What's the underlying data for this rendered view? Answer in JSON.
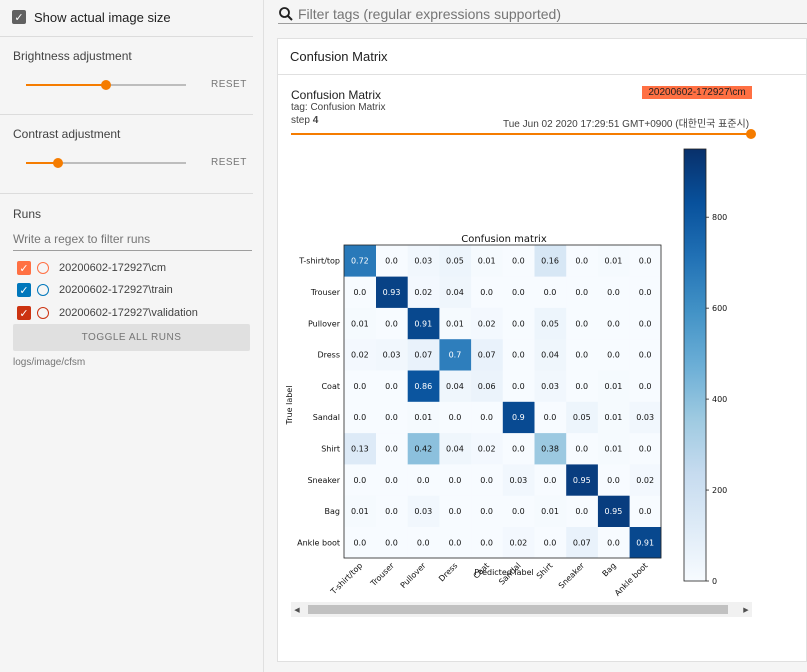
{
  "sidebar": {
    "show_actual_size": "Show actual image size",
    "brightness": {
      "label": "Brightness adjustment",
      "reset": "RESET",
      "value": 0.6
    },
    "contrast": {
      "label": "Contrast adjustment",
      "reset": "RESET",
      "value": 0.2
    },
    "runs": {
      "label": "Runs",
      "filter_placeholder": "Write a regex to filter runs",
      "items": [
        {
          "name": "20200602-172927\\cm",
          "color": "#ff7043"
        },
        {
          "name": "20200602-172927\\train",
          "color": "#0077bb"
        },
        {
          "name": "20200602-172927\\validation",
          "color": "#cc3311"
        }
      ],
      "toggle_all": "TOGGLE ALL RUNS",
      "logdir": "logs/image/cfsm"
    }
  },
  "filter": {
    "placeholder": "Filter tags (regular expressions supported)"
  },
  "card": {
    "title": "Confusion Matrix",
    "image_title": "Confusion Matrix",
    "tag_line": "tag: Confusion Matrix",
    "step_label": "step",
    "step_value": "4",
    "run_badge": "20200602-172927\\cm",
    "timestamp": "Tue Jun 02 2020 17:29:51 GMT+0900 (대한민국 표준시)"
  },
  "chart_data": {
    "type": "heatmap",
    "title": "Confusion matrix",
    "xlabel": "Predicted label",
    "ylabel": "True label",
    "categories": [
      "T-shirt/top",
      "Trouser",
      "Pullover",
      "Dress",
      "Coat",
      "Sandal",
      "Shirt",
      "Sneaker",
      "Bag",
      "Ankle boot"
    ],
    "values": [
      [
        0.72,
        0.0,
        0.03,
        0.05,
        0.01,
        0.0,
        0.16,
        0.0,
        0.01,
        0.0
      ],
      [
        0.0,
        0.93,
        0.02,
        0.04,
        0.0,
        0.0,
        0.0,
        0.0,
        0.0,
        0.0
      ],
      [
        0.01,
        0.0,
        0.91,
        0.01,
        0.02,
        0.0,
        0.05,
        0.0,
        0.0,
        0.0
      ],
      [
        0.02,
        0.03,
        0.07,
        0.7,
        0.07,
        0.0,
        0.04,
        0.0,
        0.0,
        0.0
      ],
      [
        0.0,
        0.0,
        0.86,
        0.04,
        0.06,
        0.0,
        0.03,
        0.0,
        0.01,
        0.0
      ],
      [
        0.0,
        0.0,
        0.01,
        0.0,
        0.0,
        0.9,
        0.0,
        0.05,
        0.01,
        0.03
      ],
      [
        0.13,
        0.0,
        0.42,
        0.04,
        0.02,
        0.0,
        0.38,
        0.0,
        0.01,
        0.0
      ],
      [
        0.0,
        0.0,
        0.0,
        0.0,
        0.0,
        0.03,
        0.0,
        0.95,
        0.0,
        0.02
      ],
      [
        0.01,
        0.0,
        0.03,
        0.0,
        0.0,
        0.0,
        0.01,
        0.0,
        0.95,
        0.0
      ],
      [
        0.0,
        0.0,
        0.0,
        0.0,
        0.0,
        0.02,
        0.0,
        0.07,
        0.0,
        0.91
      ]
    ],
    "colorbar": {
      "ticks": [
        0,
        200,
        400,
        600,
        800
      ],
      "range": [
        0,
        950
      ]
    },
    "colormap": {
      "low": "#f7fbff",
      "high": "#08306b"
    }
  }
}
